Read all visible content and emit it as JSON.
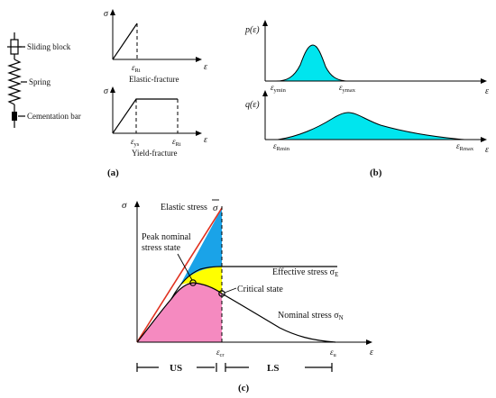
{
  "panel_a": {
    "legend": {
      "sliding_block": "Sliding block",
      "spring": "Spring",
      "cementation_bar": "Cementation bar"
    },
    "elastic": {
      "y_label": "σ",
      "x_label": "ε",
      "tick_main": "ε",
      "tick_sub": "Ri",
      "caption": "Elastic-fracture"
    },
    "yield": {
      "y_label": "σ",
      "x_label": "ε",
      "tick1_main": "ε",
      "tick1_sub": "ys",
      "tick2_main": "ε",
      "tick2_sub": "Ri",
      "caption": "Yield-fracture"
    },
    "label": "(a)"
  },
  "panel_b": {
    "top": {
      "y_label": "p(ε)",
      "x_label": "ε",
      "tick1_main": "ε",
      "tick1_sub": "ymin",
      "tick2_main": "ε",
      "tick2_sub": "ymax",
      "fill": "#00e5ee"
    },
    "bottom": {
      "y_label": "q(ε)",
      "x_label": "ε",
      "tick1_main": "ε",
      "tick1_sub": "Rmin",
      "tick2_main": "ε",
      "tick2_sub": "Rmax",
      "fill": "#00e5ee"
    },
    "label": "(b)"
  },
  "panel_c": {
    "y_label": "σ",
    "x_label": "ε",
    "elastic_stress": "Elastic stress",
    "sigma_bar": "σ",
    "peak_line1": "Peak nominal",
    "peak_line2": "stress state",
    "effective_stress": "Effective stress σ",
    "effective_sub": "E",
    "critical_state": "Critical state",
    "nominal_stress": "Nominal stress σ",
    "nominal_sub": "N",
    "tick_cr_main": "ε",
    "tick_cr_sub": "cr",
    "tick_u_main": "ε",
    "tick_u_sub": "u",
    "us": "US",
    "ls": "LS",
    "label": "(c)",
    "colors": {
      "blue": "#1aa3e8",
      "yellow": "#ffff00",
      "pink": "#f58ac0",
      "red": "#e0301e"
    }
  }
}
